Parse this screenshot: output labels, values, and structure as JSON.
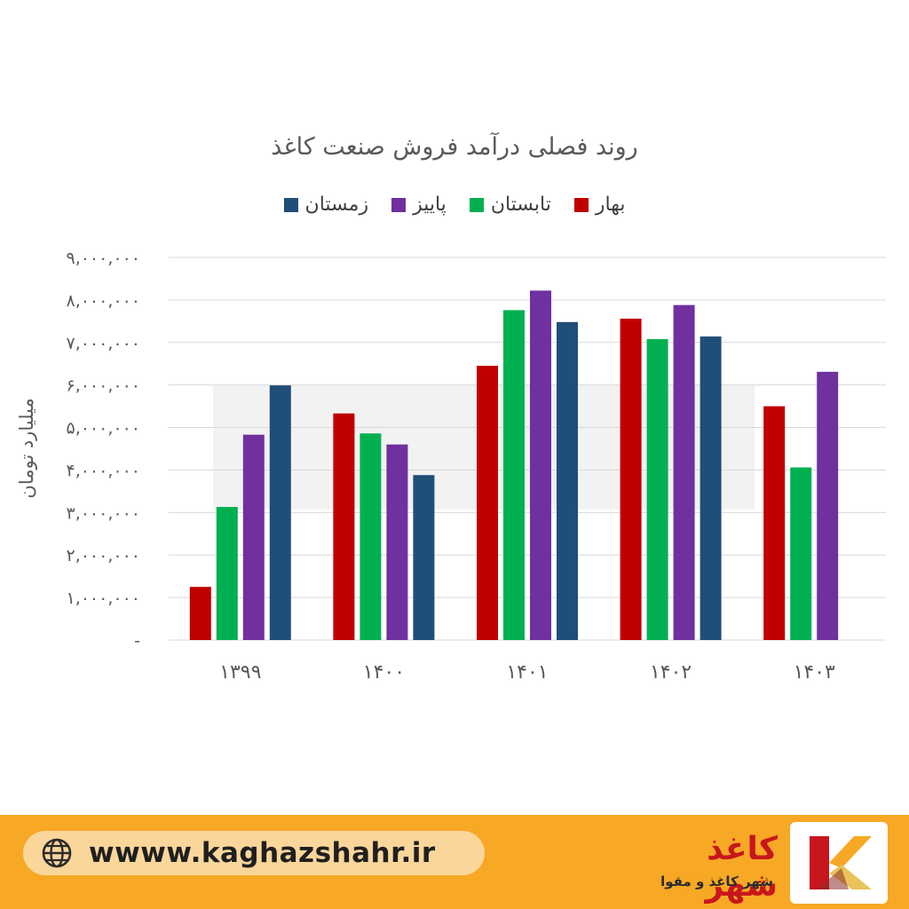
{
  "chart_data": {
    "type": "bar",
    "title": "روند فصلی درآمد فروش صنعت کاغذ",
    "ylabel": "میلیارد تومان",
    "xlabel": "",
    "categories": [
      "۱۳۹۹",
      "۱۴۰۰",
      "۱۴۰۱",
      "۱۴۰۲",
      "۱۴۰۳"
    ],
    "series": [
      {
        "name": "بهار",
        "color": "#c00000",
        "values": [
          1250000,
          5330000,
          6450000,
          7560000,
          5500000
        ]
      },
      {
        "name": "تابستان",
        "color": "#00b050",
        "values": [
          3130000,
          4860000,
          7760000,
          7080000,
          4060000
        ]
      },
      {
        "name": "پاییز",
        "color": "#7030a0",
        "values": [
          4830000,
          4600000,
          8220000,
          7880000,
          6310000
        ]
      },
      {
        "name": "زمستان",
        "color": "#1f4e79",
        "values": [
          5990000,
          3880000,
          7480000,
          7140000,
          null
        ]
      }
    ],
    "ylim": [
      0,
      9000000
    ],
    "yticks": [
      "-",
      "۱,۰۰۰,۰۰۰",
      "۲,۰۰۰,۰۰۰",
      "۳,۰۰۰,۰۰۰",
      "۴,۰۰۰,۰۰۰",
      "۵,۰۰۰,۰۰۰",
      "۶,۰۰۰,۰۰۰",
      "۷,۰۰۰,۰۰۰",
      "۸,۰۰۰,۰۰۰",
      "۹,۰۰۰,۰۰۰"
    ],
    "grid": true,
    "legend_position": "top"
  },
  "footer": {
    "website": "wwww.kaghazshahr.ir",
    "brand_name": "کاغذ شهر",
    "brand_subtitle": "شهر کاغذ و مقوا",
    "globe_icon": "globe-icon",
    "logo_icon": "k-logo-icon",
    "bar_color": "#f7a824"
  }
}
